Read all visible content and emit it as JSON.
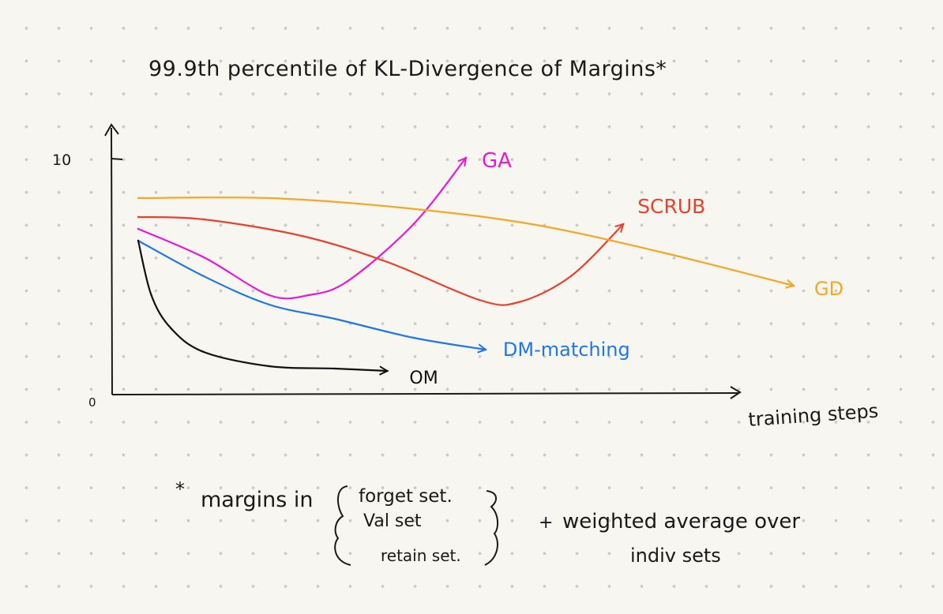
{
  "chart_data": {
    "type": "line",
    "title": "99.9th percentile of KL-Divergence of Margins*",
    "xlabel": "training steps",
    "ylabel": "",
    "ylim": [
      0,
      10
    ],
    "y_ticks": [
      "0",
      "10"
    ],
    "grid": false,
    "legend": "inline labels at line ends",
    "series": [
      {
        "name": "GA",
        "color": "#e619d6",
        "x": [
          0.0,
          0.1,
          0.2,
          0.26,
          0.32,
          0.42,
          0.5
        ],
        "y": [
          7.0,
          5.8,
          4.2,
          4.2,
          4.8,
          7.2,
          10.0
        ]
      },
      {
        "name": "SCRUB",
        "color": "#e8412c",
        "x": [
          0.0,
          0.1,
          0.25,
          0.38,
          0.52,
          0.58,
          0.66,
          0.74
        ],
        "y": [
          7.5,
          7.4,
          6.7,
          5.6,
          4.0,
          3.9,
          5.0,
          7.2
        ]
      },
      {
        "name": "GD",
        "color": "#f5a623",
        "x": [
          0.0,
          0.2,
          0.4,
          0.6,
          0.8,
          1.0
        ],
        "y": [
          8.3,
          8.3,
          7.9,
          7.2,
          6.0,
          4.6
        ]
      },
      {
        "name": "DM-matching",
        "color": "#1f77e6",
        "x": [
          0.0,
          0.1,
          0.2,
          0.3,
          0.42,
          0.53
        ],
        "y": [
          6.5,
          5.0,
          3.8,
          3.2,
          2.4,
          1.9
        ]
      },
      {
        "name": "OM",
        "color": "#111111",
        "x": [
          0.0,
          0.02,
          0.05,
          0.1,
          0.2,
          0.3,
          0.38
        ],
        "y": [
          6.5,
          4.2,
          2.8,
          1.8,
          1.2,
          1.1,
          1.0
        ]
      }
    ]
  },
  "footnote": {
    "star": "*",
    "lead": "margins in",
    "sets": [
      "forget set.",
      "Val set",
      "retain set."
    ],
    "plus": "+",
    "note_line1": "weighted average over",
    "note_line2": "indiv sets"
  },
  "colors": {
    "axis": "#1a1a1a",
    "background": "#f8f6f1"
  }
}
